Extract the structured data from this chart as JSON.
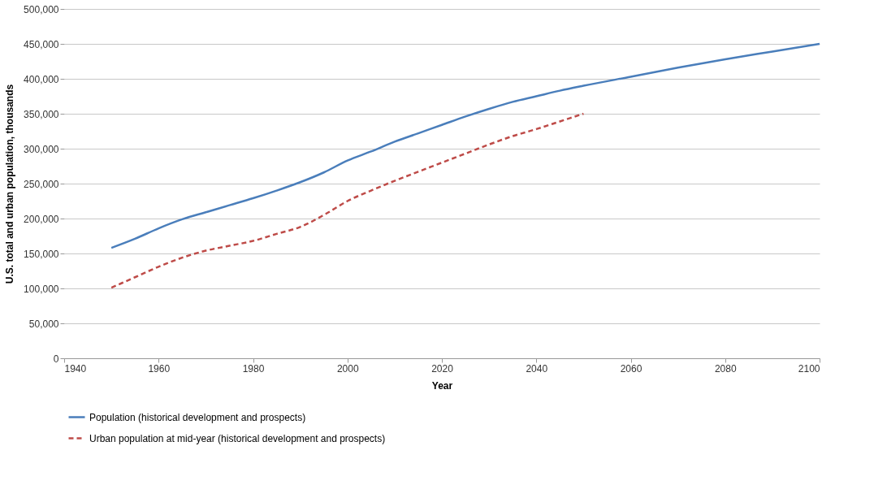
{
  "chart_data": {
    "type": "line",
    "xlabel": "Year",
    "ylabel": "U.S. total and urban population, thousands",
    "xlim": [
      1940,
      2100
    ],
    "xticks": [
      1940,
      1960,
      1980,
      2000,
      2020,
      2040,
      2060,
      2080,
      2100
    ],
    "ylim": [
      0,
      500000
    ],
    "yticks": [
      {
        "value": 0,
        "label": "0"
      },
      {
        "value": 50000,
        "label": "50,000"
      },
      {
        "value": 100000,
        "label": "100,000"
      },
      {
        "value": 150000,
        "label": "150,000"
      },
      {
        "value": 200000,
        "label": "200,000"
      },
      {
        "value": 250000,
        "label": "250,000"
      },
      {
        "value": 300000,
        "label": "300,000"
      },
      {
        "value": 350000,
        "label": "350,000"
      },
      {
        "value": 400000,
        "label": "400,000"
      },
      {
        "value": 450000,
        "label": "450,000"
      },
      {
        "value": 500000,
        "label": "500,000"
      }
    ],
    "grid": "y",
    "legend": "bottom",
    "marker": "none",
    "series": [
      {
        "name": "Population (historical development and prospects)",
        "color": "#4a7ebb",
        "line_style": "solid",
        "x": [
          1950,
          1955,
          1960,
          1965,
          1970,
          1975,
          1980,
          1985,
          1990,
          1995,
          2000,
          2005,
          2010,
          2015,
          2020,
          2025,
          2030,
          2035,
          2040,
          2045,
          2050,
          2060,
          2070,
          2080,
          2090,
          2100
        ],
        "values": [
          158000,
          171000,
          186000,
          199000,
          209000,
          219000,
          229000,
          240000,
          252000,
          266000,
          283000,
          296000,
          310000,
          322000,
          334000,
          346000,
          357000,
          367000,
          375000,
          383000,
          390000,
          403000,
          416000,
          428000,
          439000,
          450000
        ]
      },
      {
        "name": "Urban population at mid-year (historical development and prospects)",
        "color": "#be4b48",
        "line_style": "dashed",
        "x": [
          1950,
          1955,
          1960,
          1965,
          1970,
          1975,
          1980,
          1985,
          1990,
          1995,
          2000,
          2005,
          2010,
          2015,
          2020,
          2025,
          2030,
          2035,
          2040,
          2045,
          2050
        ],
        "values": [
          101000,
          116000,
          131000,
          144000,
          154000,
          161000,
          168000,
          178000,
          188000,
          205000,
          225000,
          240000,
          254000,
          267000,
          280000,
          293000,
          306000,
          318000,
          328000,
          339000,
          350000
        ]
      }
    ]
  }
}
